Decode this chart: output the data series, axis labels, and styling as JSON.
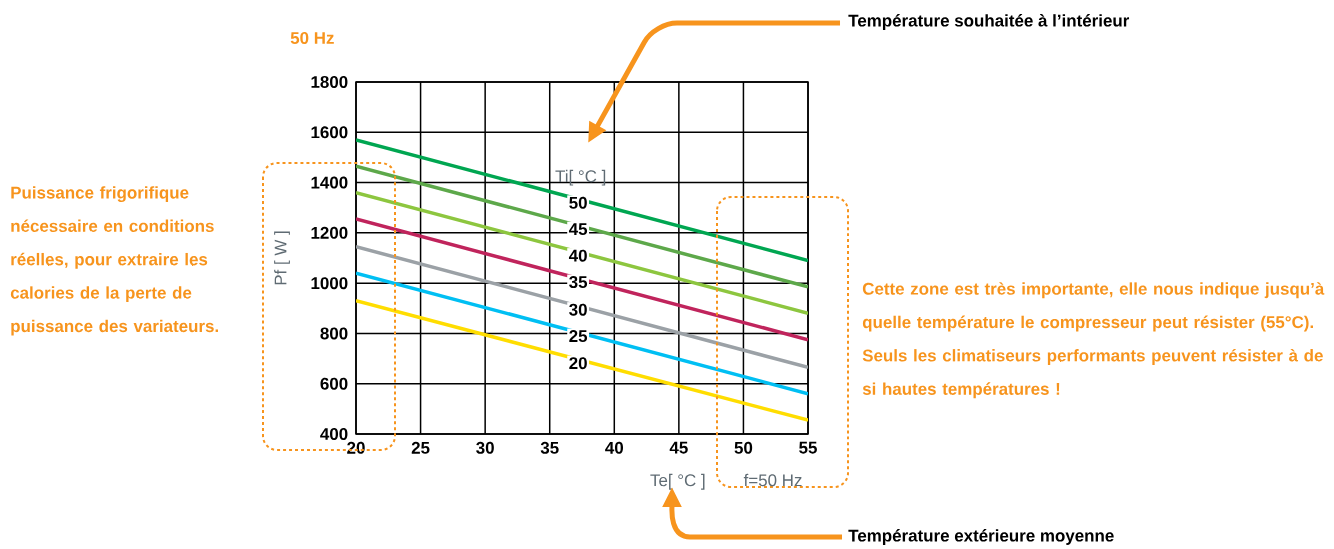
{
  "chart_data": {
    "type": "line",
    "title": "50 Hz",
    "xlabel": "Te[ °C ]",
    "ylabel": "Pf [ W ]",
    "legend_title": "Ti[ °C ]",
    "x": [
      20,
      55
    ],
    "series": [
      {
        "name": "50",
        "color": "#00a651",
        "values": [
          1570,
          1090
        ]
      },
      {
        "name": "45",
        "color": "#5da84a",
        "values": [
          1465,
          985
        ]
      },
      {
        "name": "40",
        "color": "#8dc63f",
        "values": [
          1360,
          880
        ]
      },
      {
        "name": "35",
        "color": "#c0245c",
        "values": [
          1255,
          775
        ]
      },
      {
        "name": "30",
        "color": "#9ba1a6",
        "values": [
          1145,
          665
        ]
      },
      {
        "name": "25",
        "color": "#00bff3",
        "values": [
          1040,
          560
        ]
      },
      {
        "name": "20",
        "color": "#ffdd00",
        "values": [
          930,
          455
        ]
      }
    ],
    "xlim": [
      20,
      55
    ],
    "ylim": [
      400,
      1800
    ],
    "xticks": [
      20,
      25,
      30,
      35,
      40,
      45,
      50,
      55
    ],
    "yticks": [
      400,
      600,
      800,
      1000,
      1200,
      1400,
      1600,
      1800
    ],
    "grid": true,
    "annotations": [
      "Puissance frigorifique nécessaire en conditions réelles, pour extraire les calories de la perte de puissance des variateurs.",
      "Cette zone est très importante, elle nous indique jusqu’à quelle température le compresseur peut résister (55°C). Seuls les climatiseurs performants peuvent résister à de si hautes températures !",
      "Température souhaitée à l’intérieur",
      "Température extérieure moyenne",
      "f=50 Hz"
    ]
  }
}
